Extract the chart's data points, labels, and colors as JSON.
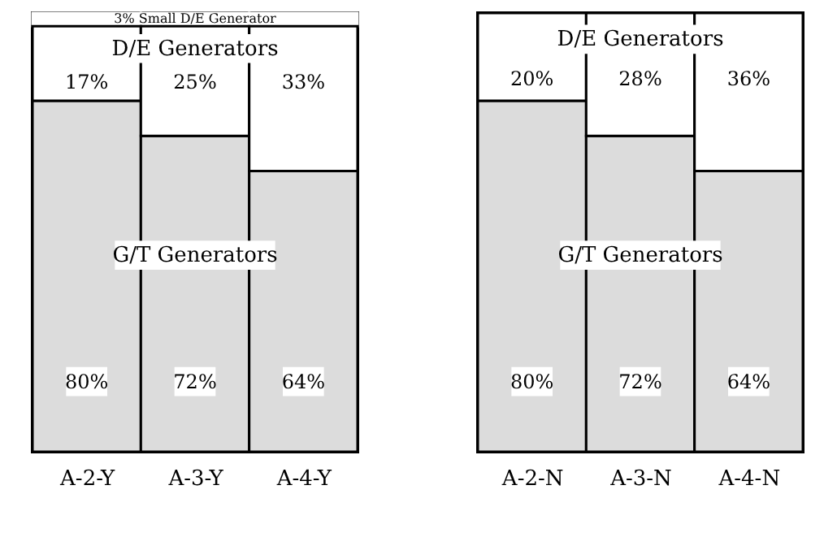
{
  "chart_data": [
    {
      "type": "bar",
      "stacked": true,
      "categories": [
        "A-2-Y",
        "A-3-Y",
        "A-4-Y"
      ],
      "tick_labels": "x",
      "series": [
        {
          "name": "G/T Generators",
          "color": "#dcdcdc",
          "values": [
            80,
            72,
            64
          ],
          "value_labels": [
            "80%",
            "72%",
            "64%"
          ]
        },
        {
          "name": "D/E Generators",
          "color": "#ffffff",
          "values": [
            17,
            25,
            33
          ],
          "value_labels": [
            "17%",
            "25%",
            "33%"
          ]
        },
        {
          "name": "3% Small D/E Generator",
          "color": "#ffffff",
          "values": [
            3,
            3,
            3
          ]
        }
      ]
    },
    {
      "type": "bar",
      "stacked": true,
      "categories": [
        "A-2-N",
        "A-3-N",
        "A-4-N"
      ],
      "tick_labels": "x",
      "series": [
        {
          "name": "G/T Generators",
          "color": "#dcdcdc",
          "values": [
            80,
            72,
            64
          ],
          "value_labels": [
            "80%",
            "72%",
            "64%"
          ]
        },
        {
          "name": "D/E Generators",
          "color": "#ffffff",
          "values": [
            20,
            28,
            36
          ],
          "value_labels": [
            "20%",
            "28%",
            "36%"
          ]
        }
      ]
    }
  ]
}
